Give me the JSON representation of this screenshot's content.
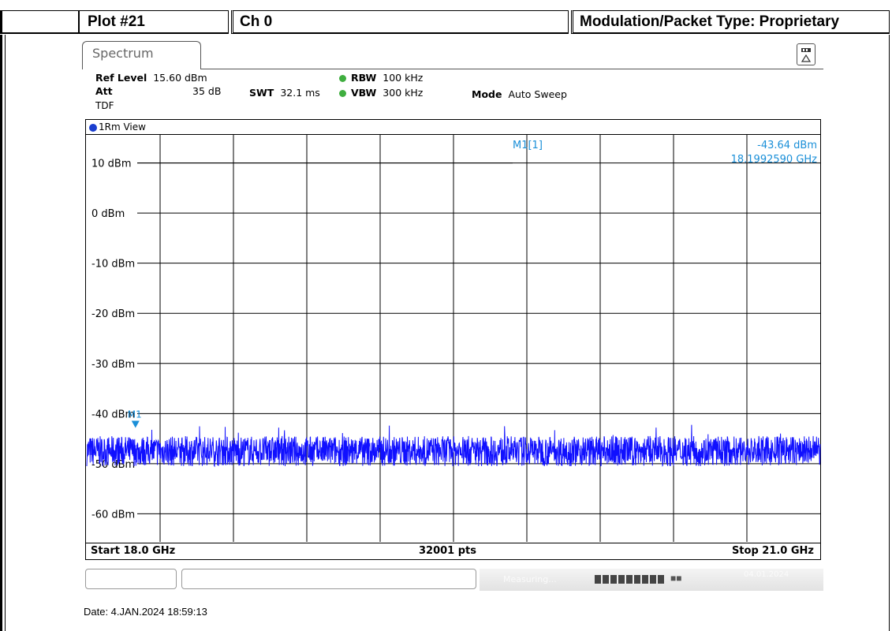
{
  "header": {
    "plot_label": "Plot #21",
    "channel_label": "Ch 0",
    "modulation_label": "Modulation/Packet Type: Proprietary"
  },
  "instrument": {
    "tab_title": "Spectrum",
    "ref_level_label": "Ref Level",
    "ref_level_value": "15.60 dBm",
    "att_label": "Att",
    "att_value": "35 dB",
    "tdf_label": "TDF",
    "swt_label": "SWT",
    "swt_value": "32.1 ms",
    "rbw_label": "RBW",
    "rbw_value": "100 kHz",
    "vbw_label": "VBW",
    "vbw_value": "300 kHz",
    "mode_label": "Mode",
    "mode_value": "Auto Sweep",
    "view_label": "1Rm View",
    "marker_label": "M1[1]",
    "marker_level": "-43.64 dBm",
    "marker_freq": "18.1992590 GHz",
    "marker_tag": "M1",
    "start_label": "Start 18.0 GHz",
    "points_label": "32001 pts",
    "stop_label": "Stop 21.0 GHz",
    "status_text": "Measuring...",
    "status_date": "04.01.2024",
    "trace_color": "#1010ff",
    "marker_color": "#1a8fd8"
  },
  "chart_data": {
    "type": "line",
    "title": "",
    "xlabel": "",
    "ylabel": "",
    "xlim": [
      18.0,
      21.0
    ],
    "x_unit": "GHz",
    "ylim": [
      -65.6,
      15.6
    ],
    "y_ticks": [
      10,
      0,
      -10,
      -20,
      -30,
      -40,
      -50,
      -60
    ],
    "y_tick_labels": [
      "10 dBm",
      "0 dBm",
      "-10 dBm",
      "-20 dBm",
      "-30 dBm",
      "-40 dBm",
      "-50 dBm",
      "-60 dBm"
    ],
    "series": [
      {
        "noise_floor_dbm_min": -50.5,
        "noise_floor_dbm_max": -44.5,
        "noise_floor_dbm_mean": -47.5
      }
    ],
    "marker": {
      "x_ghz": 18.199259,
      "y_dbm": -43.64
    },
    "grid": true
  },
  "footer": {
    "date_text": "Date: 4.JAN.2024  18:59:13"
  }
}
